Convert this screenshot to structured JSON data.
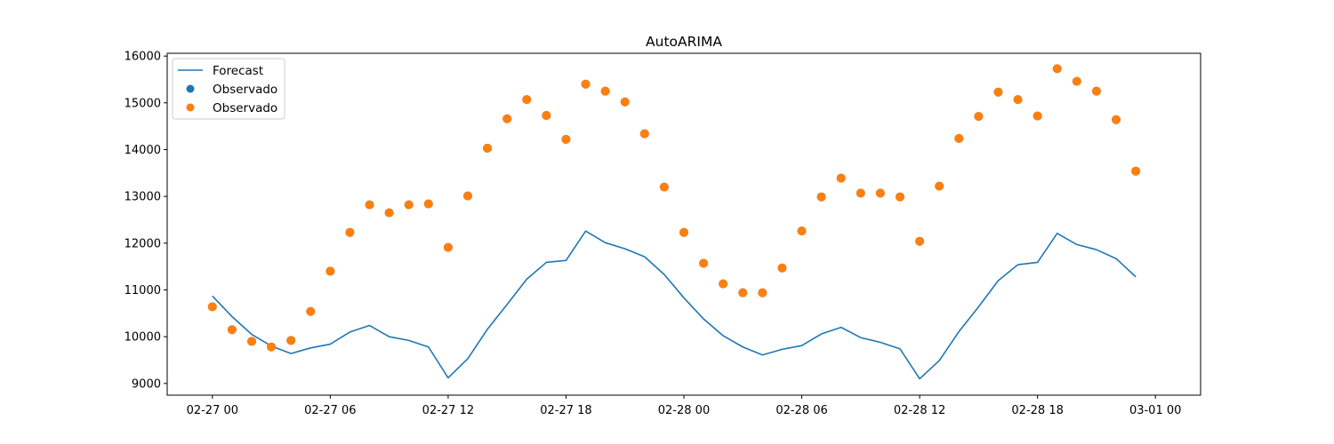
{
  "chart_data": {
    "type": "line",
    "title": "AutoARIMA",
    "xlabel": "",
    "ylabel": "",
    "x_start": "2024-02-27 00:00",
    "x_step_hours": 1,
    "x_range_hours": [
      -2.3,
      50.3
    ],
    "xlim_labels": [
      "02-27 00",
      "02-27 06",
      "02-27 12",
      "02-27 18",
      "02-28 00",
      "02-28 06",
      "02-28 12",
      "02-28 18",
      "03-01 00"
    ],
    "xtick_hours": [
      0,
      6,
      12,
      18,
      24,
      30,
      36,
      42,
      48
    ],
    "ylim": [
      8750,
      16060
    ],
    "yticks": [
      9000,
      10000,
      11000,
      12000,
      13000,
      14000,
      15000,
      16000
    ],
    "ytick_labels": [
      "9000",
      "10000",
      "11000",
      "12000",
      "13000",
      "14000",
      "15000",
      "16000"
    ],
    "grid": false,
    "legend_position": "top-left",
    "series": [
      {
        "name": "Forecast",
        "kind": "line",
        "color": "#1f77b4",
        "values": [
          10870,
          10430,
          10050,
          9800,
          9640,
          9760,
          9840,
          10100,
          10240,
          10000,
          9920,
          9780,
          9120,
          9530,
          10160,
          10690,
          11230,
          11590,
          11630,
          12260,
          12010,
          11880,
          11710,
          11330,
          10830,
          10380,
          10020,
          9780,
          9610,
          9730,
          9810,
          10060,
          10200,
          9980,
          9880,
          9740,
          9100,
          9490,
          10110,
          10640,
          11200,
          11540,
          11590,
          12210,
          11970,
          11860,
          11670,
          11280
        ]
      },
      {
        "name": "Observado",
        "kind": "scatter",
        "color": "#1f77b4",
        "values": [
          10640,
          10150,
          9900,
          9780,
          9920,
          10540,
          11400,
          12230,
          12820,
          12650,
          12820,
          12840,
          11910,
          13010,
          14030,
          14660,
          15070,
          14730,
          14220,
          15400,
          15250,
          15020,
          14340,
          13200,
          12230,
          11570,
          11130,
          10940,
          10940,
          11470,
          12260,
          12990,
          13390,
          13070,
          13070,
          12990,
          12040,
          13220,
          14240,
          14710,
          15230,
          15070,
          14720,
          15730,
          15460,
          15250,
          14640,
          13540
        ]
      },
      {
        "name": "Observado",
        "kind": "scatter",
        "color": "#ff7f0e",
        "values": [
          10640,
          10150,
          9900,
          9780,
          9920,
          10540,
          11400,
          12230,
          12820,
          12650,
          12820,
          12840,
          11910,
          13010,
          14030,
          14660,
          15070,
          14730,
          14220,
          15400,
          15250,
          15020,
          14340,
          13200,
          12230,
          11570,
          11130,
          10940,
          10940,
          11470,
          12260,
          12990,
          13390,
          13070,
          13070,
          12990,
          12040,
          13220,
          14240,
          14710,
          15230,
          15070,
          14720,
          15730,
          15460,
          15250,
          14640,
          13540
        ]
      }
    ]
  }
}
